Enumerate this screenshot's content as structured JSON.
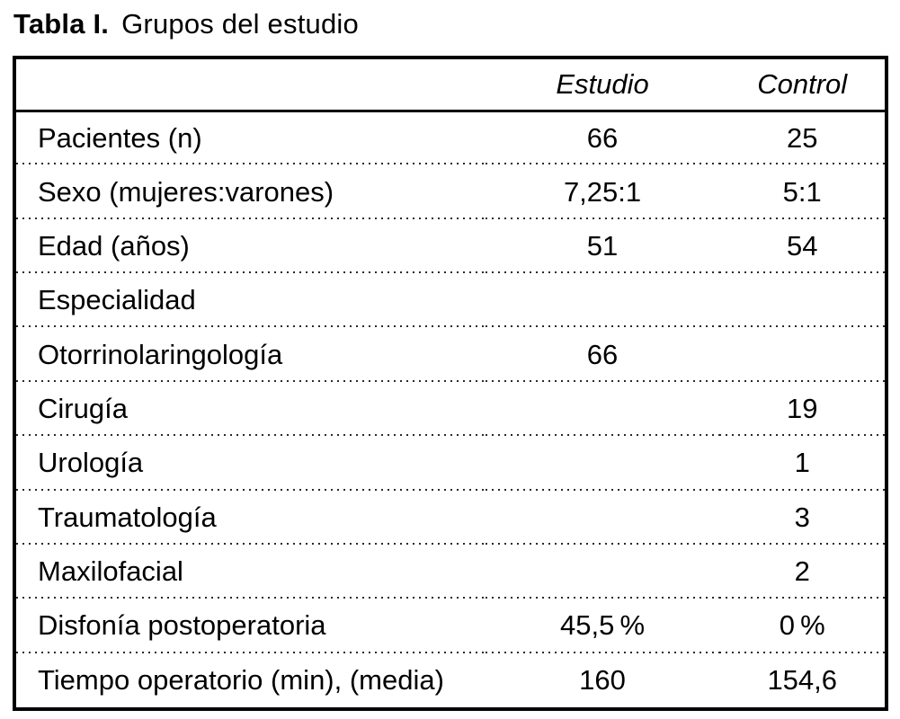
{
  "title": {
    "prefix": "Tabla I.",
    "text": "Grupos del estudio"
  },
  "colors": {
    "background": "#ffffff",
    "text": "#000000",
    "frame_border": "#000000",
    "row_separator": "#2a2a2a"
  },
  "table": {
    "columns": [
      "",
      "Estudio",
      "Control"
    ],
    "rows": [
      {
        "label": "Pacientes (n)",
        "estudio": "66",
        "control": "25"
      },
      {
        "label": "Sexo (mujeres:varones)",
        "estudio": "7,25:1",
        "control": "5:1"
      },
      {
        "label": "Edad (años)",
        "estudio": "51",
        "control": "54"
      },
      {
        "label": "Especialidad",
        "estudio": "",
        "control": ""
      },
      {
        "label": "Otorrinolaringología",
        "estudio": "66",
        "control": ""
      },
      {
        "label": "Cirugía",
        "estudio": "",
        "control": "19"
      },
      {
        "label": "Urología",
        "estudio": "",
        "control": "1"
      },
      {
        "label": "Traumatología",
        "estudio": "",
        "control": "3"
      },
      {
        "label": "Maxilofacial",
        "estudio": "",
        "control": "2"
      },
      {
        "label": "Disfonía postoperatoria",
        "estudio": "45,5 %",
        "control": "0 %"
      },
      {
        "label": "Tiempo operatorio (min), (media)",
        "estudio": "160",
        "control": "154,6"
      }
    ]
  }
}
